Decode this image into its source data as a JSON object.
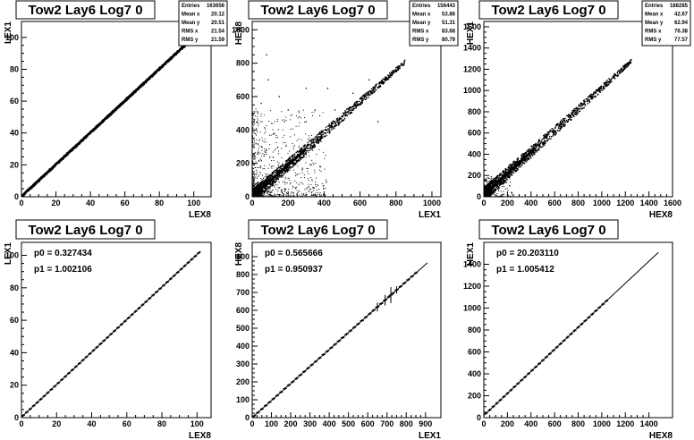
{
  "chart_data": [
    {
      "type": "scatter",
      "title": "Tow2 Lay6 Log7 0",
      "xlabel": "LEX8",
      "ylabel": "LEX1",
      "xlim": [
        0,
        110
      ],
      "ylim": [
        0,
        110
      ],
      "xticks": [
        0,
        20,
        40,
        60,
        80,
        100
      ],
      "yticks": [
        0,
        20,
        40,
        60,
        80,
        100
      ],
      "stats": [
        {
          "label": "Entries",
          "value": "163656"
        },
        {
          "label": "Mean x",
          "value": "20.12"
        },
        {
          "label": "Mean y",
          "value": "20.51"
        },
        {
          "label": "RMS x",
          "value": "21.54"
        },
        {
          "label": "RMS y",
          "value": "21.59"
        }
      ],
      "trend": {
        "x_start": 0,
        "x_end": 97,
        "slope": 1.0,
        "intercept": 0.3
      },
      "outliers": []
    },
    {
      "type": "scatter",
      "title": "Tow2 Lay6 Log7 0",
      "xlabel": "LEX1",
      "ylabel": "HEX8",
      "xlim": [
        0,
        1050
      ],
      "ylim": [
        0,
        1050
      ],
      "xticks": [
        0,
        200,
        400,
        600,
        800,
        1000
      ],
      "yticks": [
        0,
        200,
        400,
        600,
        800,
        1000
      ],
      "stats": [
        {
          "label": "Entries",
          "value": "156443"
        },
        {
          "label": "Mean x",
          "value": "53.86"
        },
        {
          "label": "Mean y",
          "value": "51.31"
        },
        {
          "label": "RMS x",
          "value": "83.68"
        },
        {
          "label": "RMS y",
          "value": "80.79"
        }
      ],
      "trend": {
        "x_start": 0,
        "x_end": 850,
        "slope": 0.95,
        "intercept": 0.6
      },
      "outliers": [
        [
          80,
          850
        ],
        [
          300,
          450
        ],
        [
          350,
          520
        ],
        [
          150,
          600
        ],
        [
          120,
          380
        ],
        [
          420,
          650
        ],
        [
          260,
          300
        ],
        [
          480,
          430
        ],
        [
          700,
          450
        ],
        [
          560,
          620
        ],
        [
          650,
          700
        ],
        [
          50,
          560
        ],
        [
          380,
          180
        ],
        [
          200,
          520
        ],
        [
          90,
          700
        ],
        [
          300,
          650
        ],
        [
          460,
          520
        ],
        [
          180,
          450
        ]
      ]
    },
    {
      "type": "scatter",
      "title": "Tow2 Lay6 Log7 0",
      "xlabel": "HEX8",
      "ylabel": "HEX1",
      "xlim": [
        0,
        1600
      ],
      "ylim": [
        0,
        1650
      ],
      "xticks": [
        0,
        200,
        400,
        600,
        800,
        1000,
        1200,
        1400,
        1600
      ],
      "yticks": [
        0,
        200,
        400,
        600,
        800,
        1000,
        1200,
        1400,
        1600
      ],
      "stats": [
        {
          "label": "Entries",
          "value": "188285"
        },
        {
          "label": "Mean x",
          "value": "42.67"
        },
        {
          "label": "Mean y",
          "value": "62.94"
        },
        {
          "label": "RMS x",
          "value": "76.38"
        },
        {
          "label": "RMS y",
          "value": "77.57"
        }
      ],
      "trend": {
        "x_start": 0,
        "x_end": 1250,
        "slope": 1.005,
        "intercept": 20.2
      },
      "outliers": [
        [
          1220,
          1230
        ],
        [
          1100,
          1120
        ],
        [
          950,
          980
        ]
      ]
    },
    {
      "type": "line",
      "title": "Tow2 Lay6 Log7 0",
      "xlabel": "LEX8",
      "ylabel": "LEX1",
      "xlim": [
        0,
        108
      ],
      "ylim": [
        0,
        108
      ],
      "xticks": [
        0,
        20,
        40,
        60,
        80,
        100
      ],
      "yticks": [
        0,
        20,
        40,
        60,
        80,
        100
      ],
      "fit": {
        "p0": 0.327434,
        "p1": 1.002106,
        "p0_text": "p0 = 0.327434",
        "p1_text": "p1 = 1.002106"
      },
      "profile": {
        "x_start": 1,
        "x_end": 102,
        "step": 2,
        "err": []
      },
      "fit_x_range": [
        0,
        102
      ]
    },
    {
      "type": "line",
      "title": "Tow2 Lay6 Log7 0",
      "xlabel": "LEX1",
      "ylabel": "HEX8",
      "xlim": [
        0,
        980
      ],
      "ylim": [
        0,
        980
      ],
      "xticks": [
        0,
        100,
        200,
        300,
        400,
        500,
        600,
        700,
        800,
        900
      ],
      "yticks": [
        0,
        100,
        200,
        300,
        400,
        500,
        600,
        700,
        800,
        900
      ],
      "fit": {
        "p0": 0.565666,
        "p1": 0.950937,
        "p0_text": "p0 = 0.565666",
        "p1_text": "p1 = 0.950937"
      },
      "profile": {
        "x_start": 10,
        "x_end": 860,
        "step": 20,
        "err": [
          [
            650,
            25
          ],
          [
            690,
            30
          ],
          [
            720,
            45
          ],
          [
            750,
            20
          ]
        ]
      },
      "fit_x_range": [
        0,
        910
      ]
    },
    {
      "type": "line",
      "title": "Tow2 Lay6 Log7 0",
      "xlabel": "HEX8",
      "ylabel": "HEX1",
      "xlim": [
        0,
        1600
      ],
      "ylim": [
        0,
        1600
      ],
      "xticks": [
        0,
        200,
        400,
        600,
        800,
        1000,
        1200,
        1400
      ],
      "yticks": [
        0,
        200,
        400,
        600,
        800,
        1000,
        1200,
        1400
      ],
      "fit": {
        "p0": 20.20311,
        "p1": 1.005412,
        "p0_text": "p0 = 20.203110",
        "p1_text": "p1 = 1.005412"
      },
      "profile": {
        "x_start": 20,
        "x_end": 1060,
        "step": 30,
        "err": []
      },
      "fit_x_range": [
        0,
        1480
      ]
    }
  ]
}
